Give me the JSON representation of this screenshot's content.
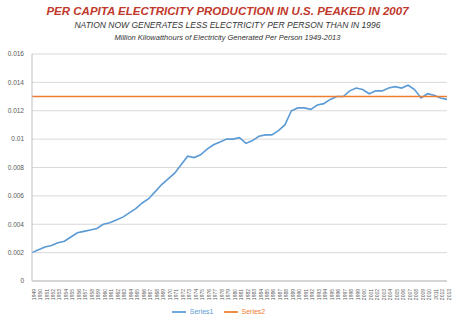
{
  "chart_data": {
    "type": "line",
    "title": "PER CAPITA ELECTRICITY PRODUCTION IN U.S. PEAKED IN 2007",
    "subtitle": "NATION NOW GENERATES LESS ELECTRICITY PER PERSON THAN IN 1996",
    "annotations": [
      "Million Kilowatthours of Electricity Generated Per Person 1949-2013"
    ],
    "categories": [
      "1949",
      "1950",
      "1951",
      "1952",
      "1953",
      "1954",
      "1955",
      "1956",
      "1957",
      "1958",
      "1959",
      "1960",
      "1961",
      "1962",
      "1963",
      "1964",
      "1965",
      "1966",
      "1967",
      "1968",
      "1969",
      "1970",
      "1971",
      "1972",
      "1973",
      "1974",
      "1975",
      "1976",
      "1977",
      "1978",
      "1979",
      "1980",
      "1981",
      "1982",
      "1983",
      "1984",
      "1985",
      "1986",
      "1987",
      "1988",
      "1989",
      "1990",
      "1991",
      "1992",
      "1993",
      "1994",
      "1995",
      "1996",
      "1997",
      "1998",
      "1999",
      "2000",
      "2001",
      "2002",
      "2003",
      "2004",
      "2005",
      "2006",
      "2007",
      "2008",
      "2009",
      "2010",
      "2011",
      "2012",
      "2013"
    ],
    "series": [
      {
        "name": "Series1",
        "color": "#5b9bd5",
        "values": [
          0.002,
          0.0022,
          0.0024,
          0.0025,
          0.0027,
          0.0028,
          0.0031,
          0.0034,
          0.0035,
          0.0036,
          0.0037,
          0.004,
          0.0041,
          0.0043,
          0.0045,
          0.0048,
          0.0051,
          0.0055,
          0.0058,
          0.0063,
          0.0068,
          0.0072,
          0.0076,
          0.0082,
          0.0088,
          0.0087,
          0.0089,
          0.0093,
          0.0096,
          0.0098,
          0.01,
          0.01,
          0.0101,
          0.0097,
          0.0099,
          0.0102,
          0.0103,
          0.0103,
          0.0106,
          0.011,
          0.012,
          0.0122,
          0.0122,
          0.0121,
          0.0124,
          0.0125,
          0.0128,
          0.013,
          0.013,
          0.0134,
          0.0136,
          0.0135,
          0.0132,
          0.0134,
          0.0134,
          0.0136,
          0.0137,
          0.0136,
          0.0138,
          0.0135,
          0.0129,
          0.0132,
          0.0131,
          0.0129,
          0.0128
        ]
      },
      {
        "name": "Series2",
        "color": "#ed7d31",
        "values": [
          0.013,
          0.013,
          0.013,
          0.013,
          0.013,
          0.013,
          0.013,
          0.013,
          0.013,
          0.013,
          0.013,
          0.013,
          0.013,
          0.013,
          0.013,
          0.013,
          0.013,
          0.013,
          0.013,
          0.013,
          0.013,
          0.013,
          0.013,
          0.013,
          0.013,
          0.013,
          0.013,
          0.013,
          0.013,
          0.013,
          0.013,
          0.013,
          0.013,
          0.013,
          0.013,
          0.013,
          0.013,
          0.013,
          0.013,
          0.013,
          0.013,
          0.013,
          0.013,
          0.013,
          0.013,
          0.013,
          0.013,
          0.013,
          0.013,
          0.013,
          0.013,
          0.013,
          0.013,
          0.013,
          0.013,
          0.013,
          0.013,
          0.013,
          0.013,
          0.013,
          0.013,
          0.013,
          0.013,
          0.013,
          0.013
        ]
      }
    ],
    "ylim": [
      0,
      0.016
    ],
    "yticks": [
      0,
      0.002,
      0.004,
      0.006,
      0.008,
      0.01,
      0.012,
      0.014,
      0.016
    ],
    "grid": true,
    "legend": "bottom"
  }
}
